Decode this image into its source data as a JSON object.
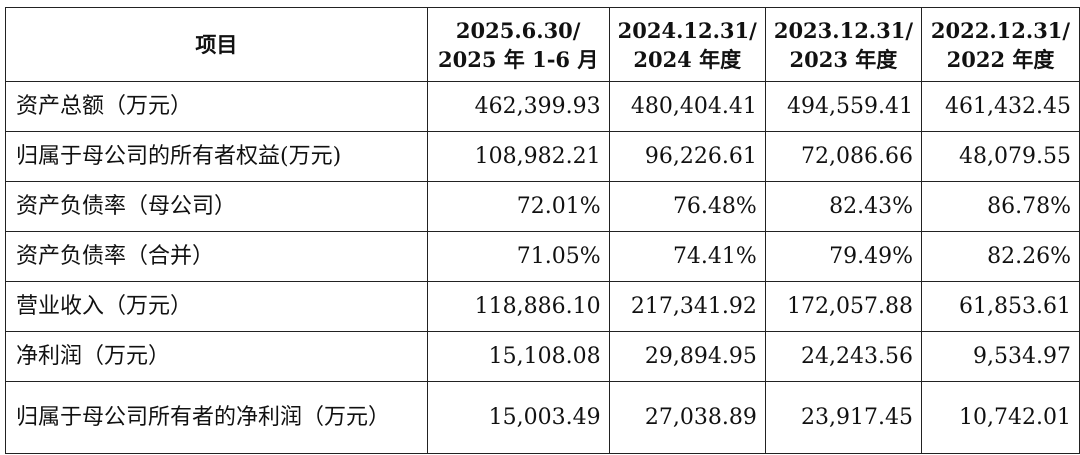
{
  "table": {
    "headers": [
      {
        "lines": [
          "项目"
        ]
      },
      {
        "lines": [
          "2025.6.30/",
          "2025 年 1-6 月"
        ]
      },
      {
        "lines": [
          "2024.12.31/",
          "2024 年度"
        ]
      },
      {
        "lines": [
          "2023.12.31/",
          "2023 年度"
        ]
      },
      {
        "lines": [
          "2022.12.31/",
          "2022 年度"
        ]
      }
    ],
    "rows": [
      {
        "label": "资产总额（万元）",
        "values": [
          "462,399.93",
          "480,404.41",
          "494,559.41",
          "461,432.45"
        ]
      },
      {
        "label": "归属于母公司的所有者权益(万元)",
        "values": [
          "108,982.21",
          "96,226.61",
          "72,086.66",
          "48,079.55"
        ]
      },
      {
        "label": "资产负债率（母公司）",
        "values": [
          "72.01%",
          "76.48%",
          "82.43%",
          "86.78%"
        ]
      },
      {
        "label": "资产负债率（合并）",
        "values": [
          "71.05%",
          "74.41%",
          "79.49%",
          "82.26%"
        ]
      },
      {
        "label": "营业收入（万元）",
        "values": [
          "118,886.10",
          "217,341.92",
          "172,057.88",
          "61,853.61"
        ]
      },
      {
        "label": "净利润（万元）",
        "values": [
          "15,108.08",
          "29,894.95",
          "24,243.56",
          "9,534.97"
        ]
      },
      {
        "label": "归属于母公司所有者的净利润（万元）",
        "values": [
          "15,003.49",
          "27,038.89",
          "23,917.45",
          "10,742.01"
        ]
      }
    ]
  }
}
